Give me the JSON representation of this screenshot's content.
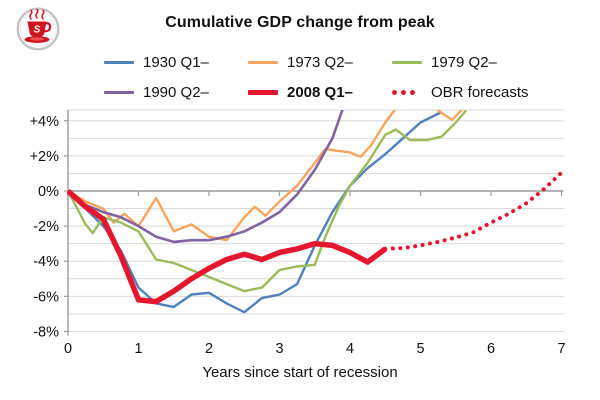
{
  "frame": {
    "border_color": "#c3a253"
  },
  "logo": {
    "icon": "coffee-cup-logo",
    "monogram": "S",
    "color": "#cf1420"
  },
  "chart_data": {
    "type": "line",
    "title": "Cumulative GDP change from peak",
    "xlabel": "Years since start of recession",
    "xlim": [
      0,
      7
    ],
    "ylim": [
      -8,
      4.6
    ],
    "grid": "horizontal gridlines every 1%, labels every 2%, zero axis emphasized",
    "legend_position": "top, two rows of three",
    "x_ticks": [
      "0",
      "1",
      "2",
      "3",
      "4",
      "5",
      "6",
      "7"
    ],
    "y_ticks": [
      {
        "value": 4,
        "label": "+4%"
      },
      {
        "value": 2,
        "label": "+2%"
      },
      {
        "value": 0,
        "label": "0%"
      },
      {
        "value": -2,
        "label": "-2%"
      },
      {
        "value": -4,
        "label": "-4%"
      },
      {
        "value": -6,
        "label": "-6%"
      },
      {
        "value": -8,
        "label": "-8%"
      }
    ],
    "colors": {
      "gridline": "#d9d9d9",
      "axis": "#9b9b9b",
      "tick_text": "#111111"
    },
    "series": [
      {
        "name": "1930 Q1–",
        "color": "#4f81bd",
        "width": 2.4,
        "style": "solid",
        "points": [
          [
            0,
            0
          ],
          [
            0.25,
            -1.0
          ],
          [
            0.5,
            -2.0
          ],
          [
            0.75,
            -3.4
          ],
          [
            1,
            -5.5
          ],
          [
            1.25,
            -6.4
          ],
          [
            1.5,
            -6.6
          ],
          [
            1.75,
            -5.9
          ],
          [
            2,
            -5.8
          ],
          [
            2.25,
            -6.4
          ],
          [
            2.5,
            -6.9
          ],
          [
            2.75,
            -6.1
          ],
          [
            3,
            -5.9
          ],
          [
            3.25,
            -5.3
          ],
          [
            3.5,
            -3.1
          ],
          [
            3.75,
            -1.2
          ],
          [
            4,
            0.3
          ],
          [
            4.25,
            1.3
          ],
          [
            4.5,
            2.1
          ],
          [
            4.75,
            3.0
          ],
          [
            5,
            3.9
          ],
          [
            5.3,
            4.5
          ]
        ]
      },
      {
        "name": "1973 Q2–",
        "color": "#f9a45c",
        "width": 2.4,
        "style": "solid",
        "points": [
          [
            0,
            0
          ],
          [
            0.25,
            -0.6
          ],
          [
            0.5,
            -1.0
          ],
          [
            0.65,
            -1.8
          ],
          [
            0.8,
            -1.3
          ],
          [
            1,
            -2.0
          ],
          [
            1.25,
            -0.4
          ],
          [
            1.5,
            -2.3
          ],
          [
            1.75,
            -1.9
          ],
          [
            2,
            -2.6
          ],
          [
            2.25,
            -2.8
          ],
          [
            2.5,
            -1.5
          ],
          [
            2.65,
            -0.9
          ],
          [
            2.8,
            -1.4
          ],
          [
            3,
            -0.6
          ],
          [
            3.25,
            0.3
          ],
          [
            3.5,
            1.6
          ],
          [
            3.65,
            2.4
          ],
          [
            3.8,
            2.3
          ],
          [
            4,
            2.2
          ],
          [
            4.15,
            1.95
          ],
          [
            4.3,
            2.6
          ],
          [
            4.5,
            3.9
          ],
          [
            4.65,
            4.7
          ],
          [
            5,
            5.3
          ],
          [
            5.3,
            4.45
          ],
          [
            5.45,
            4.05
          ],
          [
            5.6,
            4.7
          ]
        ]
      },
      {
        "name": "1979 Q2–",
        "color": "#9bbb59",
        "width": 2.4,
        "style": "solid",
        "points": [
          [
            0,
            0
          ],
          [
            0.25,
            -1.9
          ],
          [
            0.35,
            -2.4
          ],
          [
            0.5,
            -1.5
          ],
          [
            0.75,
            -1.8
          ],
          [
            1,
            -2.3
          ],
          [
            1.25,
            -3.9
          ],
          [
            1.5,
            -4.1
          ],
          [
            1.75,
            -4.5
          ],
          [
            2,
            -4.9
          ],
          [
            2.25,
            -5.3
          ],
          [
            2.5,
            -5.7
          ],
          [
            2.75,
            -5.5
          ],
          [
            3,
            -4.5
          ],
          [
            3.25,
            -4.3
          ],
          [
            3.5,
            -4.2
          ],
          [
            3.65,
            -2.6
          ],
          [
            3.85,
            -0.8
          ],
          [
            4,
            0.3
          ],
          [
            4.25,
            1.6
          ],
          [
            4.5,
            3.2
          ],
          [
            4.65,
            3.5
          ],
          [
            4.85,
            2.9
          ],
          [
            5.1,
            2.9
          ],
          [
            5.3,
            3.1
          ],
          [
            5.5,
            3.9
          ],
          [
            5.65,
            4.6
          ]
        ]
      },
      {
        "name": "1990 Q2–",
        "color": "#8064a2",
        "width": 2.6,
        "style": "solid",
        "points": [
          [
            0,
            0
          ],
          [
            0.25,
            -0.8
          ],
          [
            0.5,
            -1.2
          ],
          [
            0.75,
            -1.5
          ],
          [
            1,
            -2.0
          ],
          [
            1.25,
            -2.6
          ],
          [
            1.5,
            -2.9
          ],
          [
            1.75,
            -2.8
          ],
          [
            2,
            -2.8
          ],
          [
            2.25,
            -2.6
          ],
          [
            2.5,
            -2.3
          ],
          [
            2.75,
            -1.8
          ],
          [
            3,
            -1.2
          ],
          [
            3.25,
            -0.2
          ],
          [
            3.5,
            1.2
          ],
          [
            3.75,
            3.0
          ],
          [
            3.9,
            4.7
          ]
        ]
      },
      {
        "name": "2008 Q1–",
        "color": "#e4172e",
        "width": 5.5,
        "style": "solid",
        "points": [
          [
            0,
            0
          ],
          [
            0.25,
            -0.9
          ],
          [
            0.5,
            -1.6
          ],
          [
            0.75,
            -3.7
          ],
          [
            1,
            -6.2
          ],
          [
            1.25,
            -6.3
          ],
          [
            1.5,
            -5.7
          ],
          [
            1.75,
            -5.0
          ],
          [
            2,
            -4.4
          ],
          [
            2.25,
            -3.9
          ],
          [
            2.5,
            -3.6
          ],
          [
            2.75,
            -3.9
          ],
          [
            3,
            -3.5
          ],
          [
            3.25,
            -3.3
          ],
          [
            3.5,
            -3.0
          ],
          [
            3.75,
            -3.1
          ],
          [
            4,
            -3.5
          ],
          [
            4.25,
            -4.05
          ],
          [
            4.5,
            -3.3
          ]
        ]
      },
      {
        "name": "OBR forecasts",
        "color": "#e4172e",
        "width": 4,
        "style": "dotted",
        "points": [
          [
            4.5,
            -3.3
          ],
          [
            4.75,
            -3.25
          ],
          [
            5,
            -3.1
          ],
          [
            5.25,
            -2.9
          ],
          [
            5.5,
            -2.65
          ],
          [
            5.75,
            -2.35
          ],
          [
            6,
            -1.8
          ],
          [
            6.25,
            -1.3
          ],
          [
            6.5,
            -0.7
          ],
          [
            6.75,
            0.1
          ],
          [
            7,
            1.05
          ]
        ]
      }
    ]
  }
}
